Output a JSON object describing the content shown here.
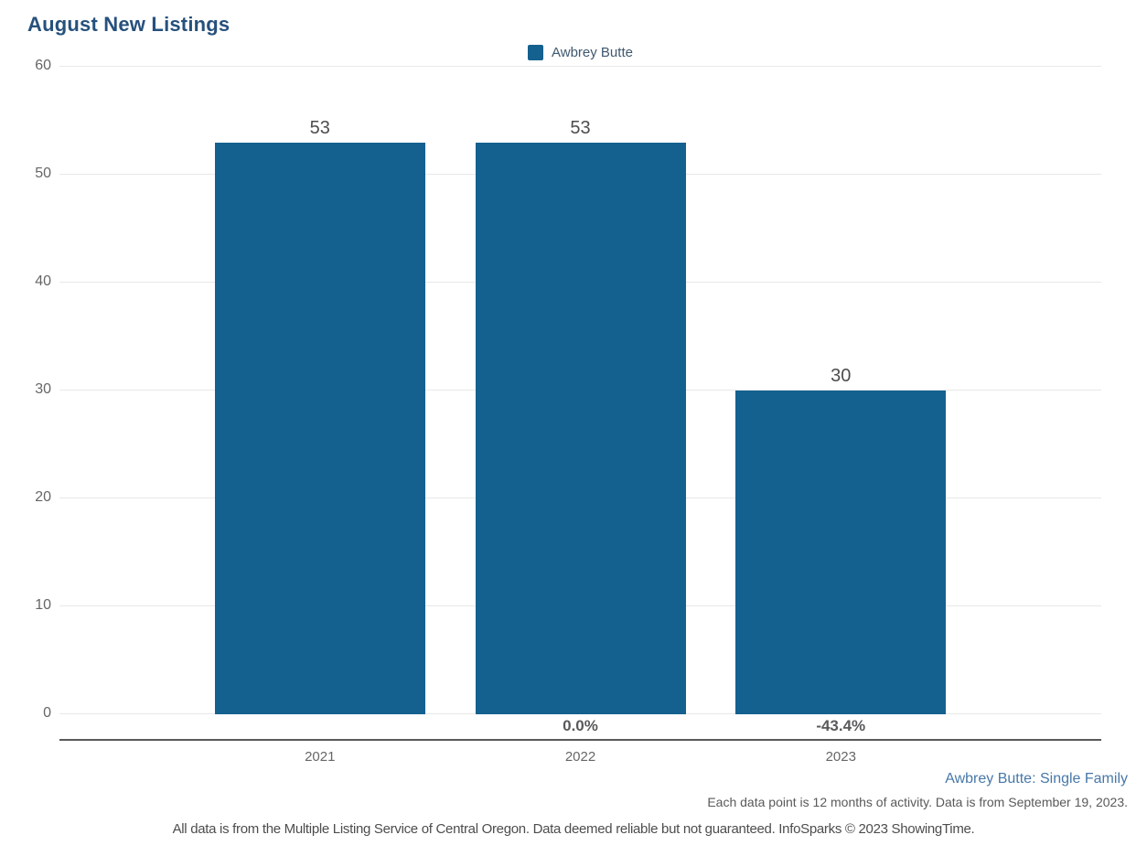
{
  "title": "August New Listings",
  "legend": {
    "label": "Awbrey Butte",
    "swatch_color": "#14618F"
  },
  "chart_data": {
    "type": "bar",
    "title": "August New Listings",
    "categories": [
      "2021",
      "2022",
      "2023"
    ],
    "values": [
      53,
      53,
      30
    ],
    "bar_value_labels": [
      "53",
      "53",
      "30"
    ],
    "pct_change_labels": [
      "",
      "0.0%",
      "-43.4%"
    ],
    "series": [
      {
        "name": "Awbrey Butte",
        "values": [
          53,
          53,
          30
        ]
      }
    ],
    "xlabel": "",
    "ylabel": "",
    "ylim": [
      0,
      60
    ],
    "yticks": [
      0,
      10,
      20,
      30,
      40,
      50,
      60
    ],
    "grid": true,
    "legend_position": "top-center",
    "bar_color": "#14618F"
  },
  "footer": {
    "series_note": "Awbrey Butte: Single Family",
    "data_note": "Each data point is 12 months of activity. Data is from September 19, 2023.",
    "disclaimer": "All data is from the Multiple Listing Service of Central Oregon. Data deemed reliable but not guaranteed. InfoSparks © 2023 ShowingTime."
  }
}
